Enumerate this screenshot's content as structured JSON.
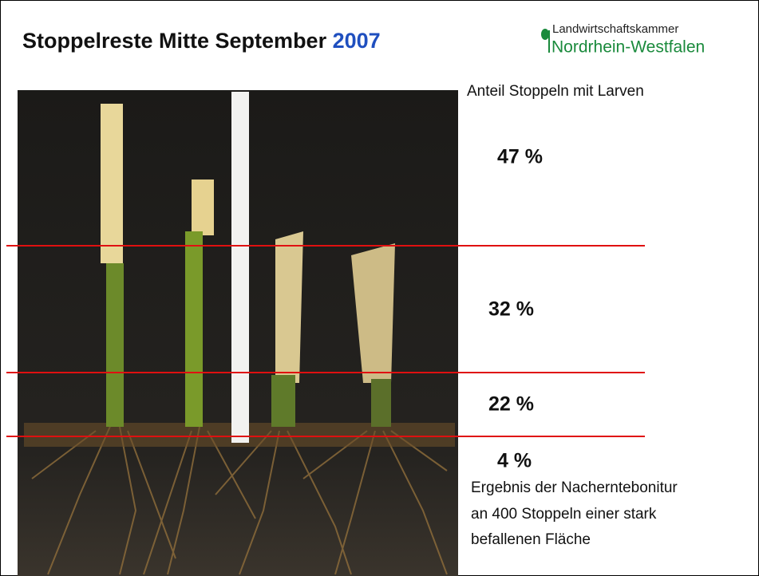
{
  "header": {
    "title": "Stoppelreste Mitte September",
    "year": "2007"
  },
  "logo": {
    "line1": "Landwirtschaftskammer",
    "line2": "Nordrhein-Westfalen"
  },
  "caption": "Anteil Stoppeln mit Larven",
  "shares": [
    "47 %",
    "32 %",
    "22 %",
    "4 %"
  ],
  "note": {
    "lines": [
      "Ergebnis der Nacherntebonitur",
      "an 400 Stoppeln einer stark",
      "befallenen Fläche"
    ]
  }
}
